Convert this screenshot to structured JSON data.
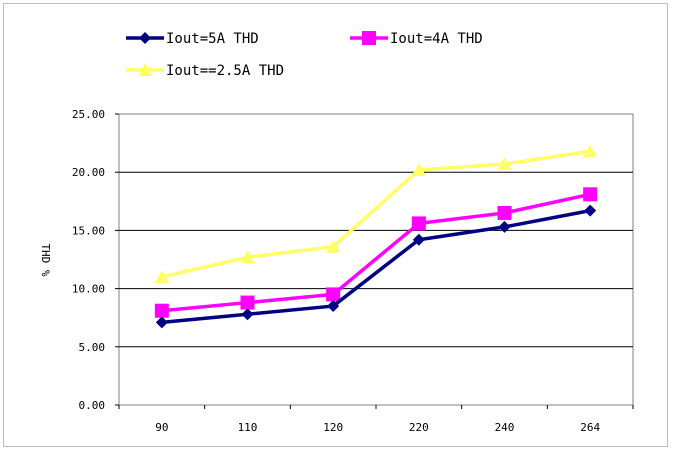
{
  "chart_data": {
    "type": "line",
    "categories": [
      "90",
      "110",
      "120",
      "220",
      "240",
      "264"
    ],
    "ylabel": "THD %",
    "ylim": [
      0,
      25
    ],
    "yticks": [
      "0.00",
      "5.00",
      "10.00",
      "15.00",
      "20.00",
      "25.00"
    ],
    "grid": true,
    "legend_position": "top-left",
    "series": [
      {
        "name": "Iout=5A THD",
        "values": [
          7.1,
          7.8,
          8.5,
          14.2,
          15.3,
          16.7
        ],
        "color": "#000080",
        "marker": "diamond"
      },
      {
        "name": "Iout=4A THD",
        "values": [
          8.1,
          8.8,
          9.5,
          15.6,
          16.5,
          18.1
        ],
        "color": "#ff00ff",
        "marker": "square"
      },
      {
        "name": "Iout==2.5A THD",
        "values": [
          11.0,
          12.7,
          13.6,
          20.2,
          20.7,
          21.8
        ],
        "color": "#ffff66",
        "marker": "triangle"
      }
    ]
  }
}
